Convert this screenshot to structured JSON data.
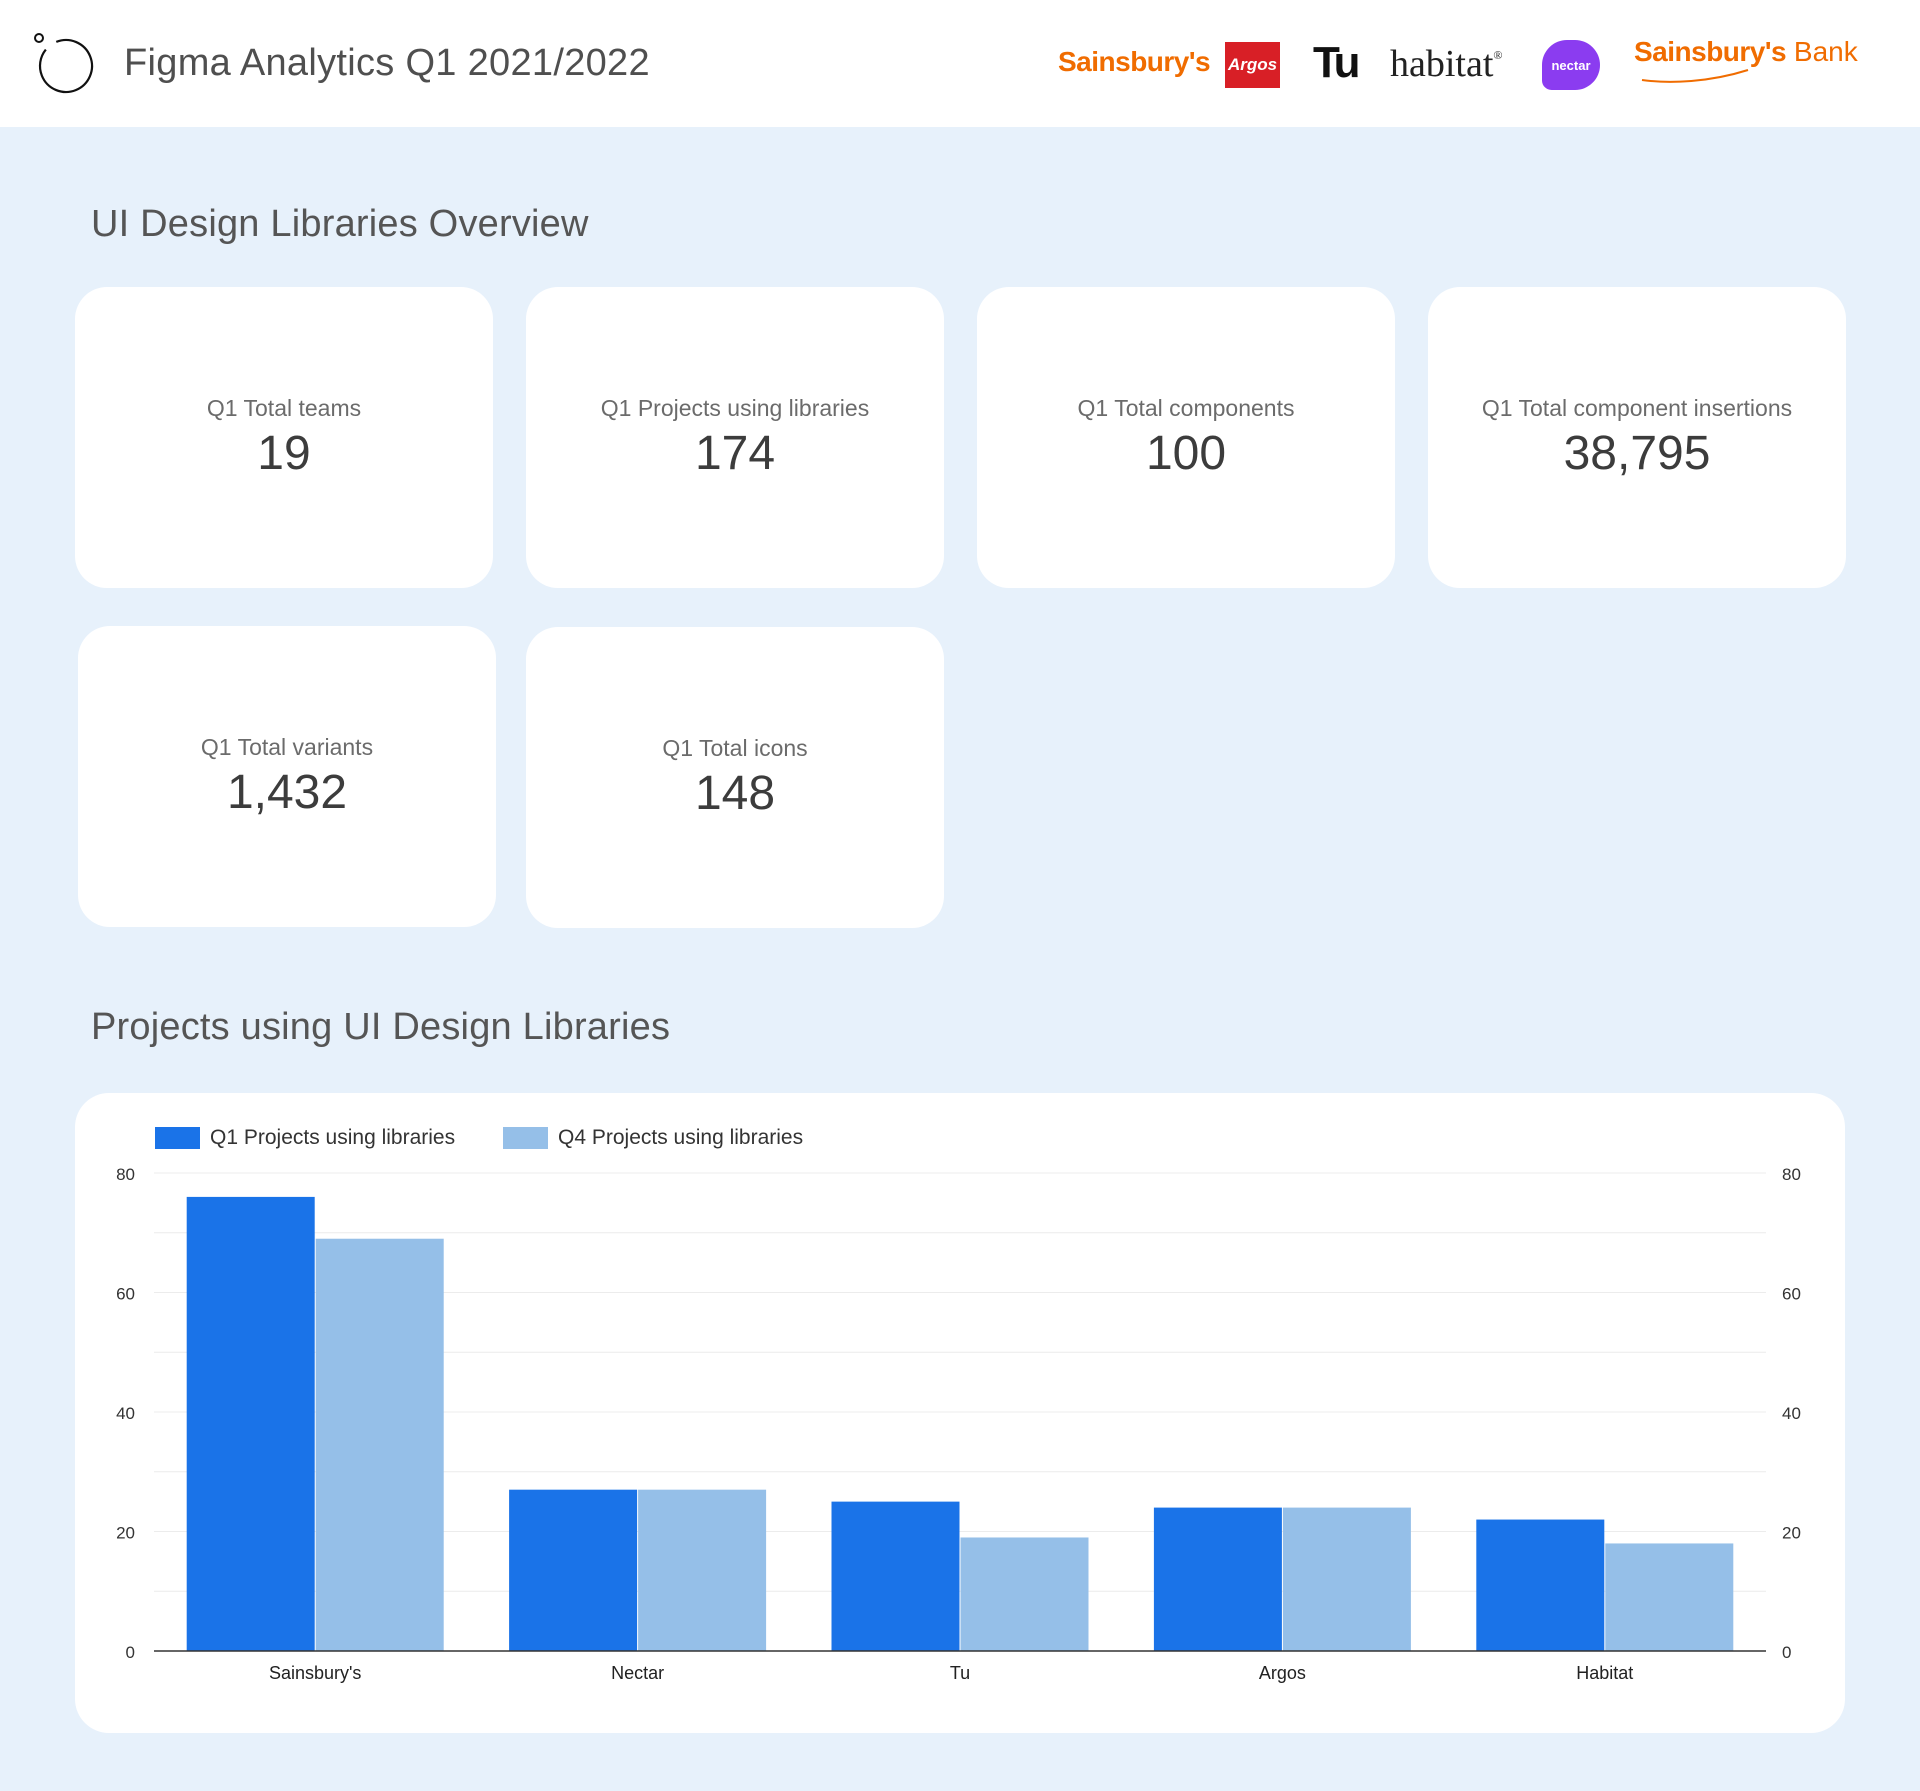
{
  "header": {
    "title": "Figma Analytics Q1 2021/2022",
    "brands": {
      "sainsburys": "Sainsbury's",
      "argos": "Argos",
      "tu": "Tu",
      "habitat": "habitat",
      "habitat_mark": "®",
      "nectar": "nectar",
      "bank_name": "Sainsbury's",
      "bank_word": "Bank"
    }
  },
  "overview": {
    "title": "UI Design Libraries Overview",
    "cards": [
      {
        "label": "Q1 Total teams",
        "value": "19"
      },
      {
        "label": "Q1 Projects using libraries",
        "value": "174"
      },
      {
        "label": "Q1 Total components",
        "value": "100"
      },
      {
        "label": "Q1 Total component insertions",
        "value": "38,795"
      },
      {
        "label": "Q1 Total variants",
        "value": "1,432"
      },
      {
        "label": "Q1 Total icons",
        "value": "148"
      }
    ]
  },
  "projects_section": {
    "title": "Projects using UI Design Libraries"
  },
  "colors": {
    "q1": "#1a73e8",
    "q4": "#95bfe8",
    "accent_orange": "#f06c00"
  },
  "chart_data": {
    "type": "bar",
    "categories": [
      "Sainsbury's",
      "Nectar",
      "Tu",
      "Argos",
      "Habitat"
    ],
    "series": [
      {
        "name": "Q1 Projects using libraries",
        "values": [
          76,
          27,
          25,
          24,
          22
        ]
      },
      {
        "name": "Q4 Projects using libraries",
        "values": [
          69,
          27,
          19,
          24,
          18
        ]
      }
    ],
    "ylim": [
      0,
      80
    ],
    "yticks": [
      "0",
      "20",
      "40",
      "60",
      "80"
    ],
    "legend": "top-left",
    "grid": true,
    "dual_axis_labels": true,
    "xlabel": "",
    "ylabel": ""
  }
}
